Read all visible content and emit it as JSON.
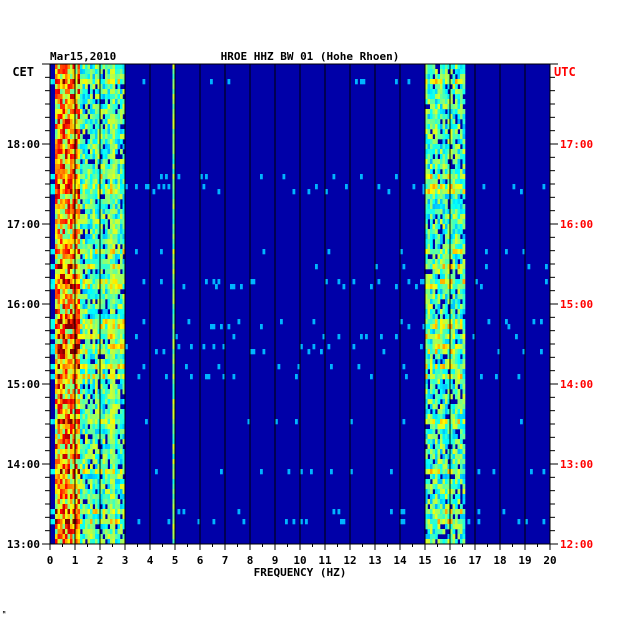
{
  "header": {
    "date": "Mar15,2010",
    "station": "HROE HHZ BW 01 (Hohe Rhoen)",
    "left_zone": "CET",
    "right_zone": "UTC"
  },
  "footer": {
    "mark": "ᴹ"
  },
  "colors": {
    "background_plot": "#0000a8",
    "utc_label": "#ff0000",
    "axis_text": "#000000"
  },
  "chart_data": {
    "type": "heatmap",
    "title": "HROE HHZ BW 01 (Hohe Rhoen)",
    "xlabel": "FREQUENCY (HZ)",
    "x_ticks": [
      "0",
      "1",
      "2",
      "3",
      "4",
      "5",
      "6",
      "7",
      "8",
      "9",
      "10",
      "11",
      "12",
      "13",
      "14",
      "15",
      "16",
      "17",
      "18",
      "19",
      "20"
    ],
    "xlim": [
      0,
      20
    ],
    "y_left_ticks": [
      "13:00",
      "14:00",
      "15:00",
      "16:00",
      "17:00",
      "18:00"
    ],
    "y_right_ticks": [
      "12:00",
      "13:00",
      "14:00",
      "15:00",
      "16:00",
      "17:00"
    ],
    "ylim_cet_hours": [
      13.0,
      19.0
    ],
    "grid": true,
    "colormap": "jet",
    "energy_bands_hz": [
      {
        "from": 0.2,
        "to": 1.2,
        "level": "high"
      },
      {
        "from": 1.2,
        "to": 3.0,
        "level": "medium"
      },
      {
        "from": 15.0,
        "to": 16.6,
        "level": "medium"
      }
    ],
    "persistent_lines_hz": [
      2.5,
      4.95
    ]
  }
}
